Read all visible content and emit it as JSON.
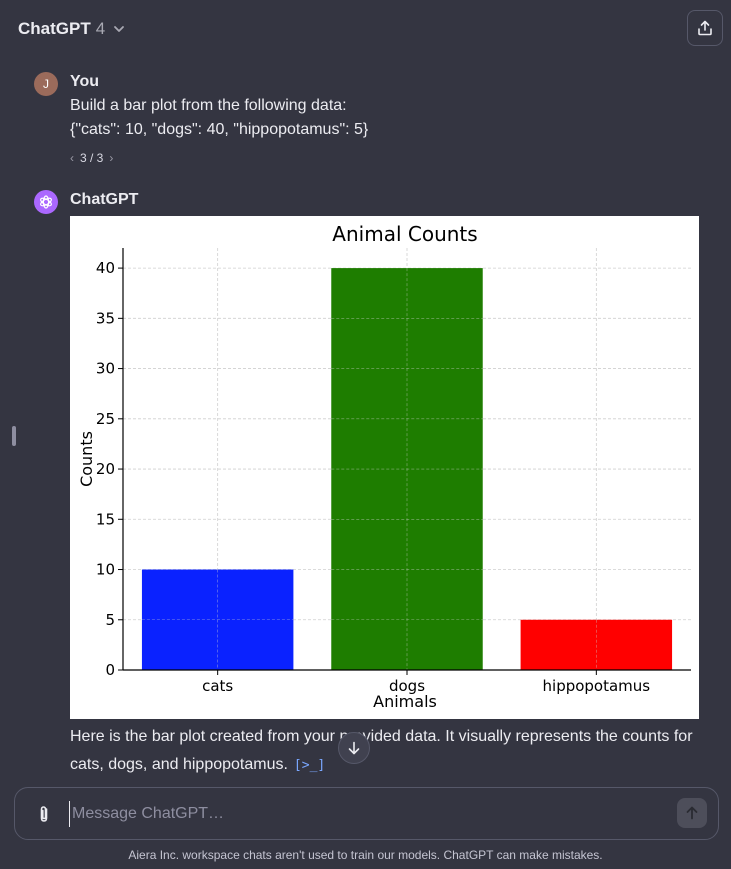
{
  "header": {
    "model_name": "ChatGPT",
    "model_version": "4",
    "icons": {
      "dropdown": "chevron-down-icon",
      "share": "share-icon"
    }
  },
  "conversation": {
    "user": {
      "avatar_initial": "J",
      "author": "You",
      "lines": [
        "Build a bar plot from the following data:",
        "{\"cats\": 10, \"dogs\": 40, \"hippopotamus\": 5}"
      ],
      "pager": "3 / 3"
    },
    "assistant": {
      "author": "ChatGPT",
      "reply_lines": [
        "Here is the bar plot created from your provided data. It visually represents the counts for",
        "cats, dogs, and hippopotamus."
      ],
      "code_link": "[>_]"
    }
  },
  "chart_data": {
    "type": "bar",
    "title": "Animal Counts",
    "xlabel": "Animals",
    "ylabel": "Counts",
    "categories": [
      "cats",
      "dogs",
      "hippopotamus"
    ],
    "values": [
      10,
      40,
      5
    ],
    "colors": [
      "#0a22ff",
      "#1e7d00",
      "#ff0000"
    ],
    "ylim": [
      0,
      42
    ],
    "yticks": [
      0,
      5,
      10,
      15,
      20,
      25,
      30,
      35,
      40
    ],
    "grid": true
  },
  "composer": {
    "placeholder": "Message ChatGPT…",
    "value": "",
    "icons": {
      "attach": "paperclip-icon",
      "send": "arrow-up-icon"
    }
  },
  "footer": {
    "disclaimer": "Aiera Inc. workspace chats aren't used to train our models. ChatGPT can make mistakes."
  },
  "colors": {
    "background": "#343541",
    "text": "#ececf1",
    "assistant_avatar": "#ab68ff",
    "user_avatar": "#9b6b5b"
  }
}
